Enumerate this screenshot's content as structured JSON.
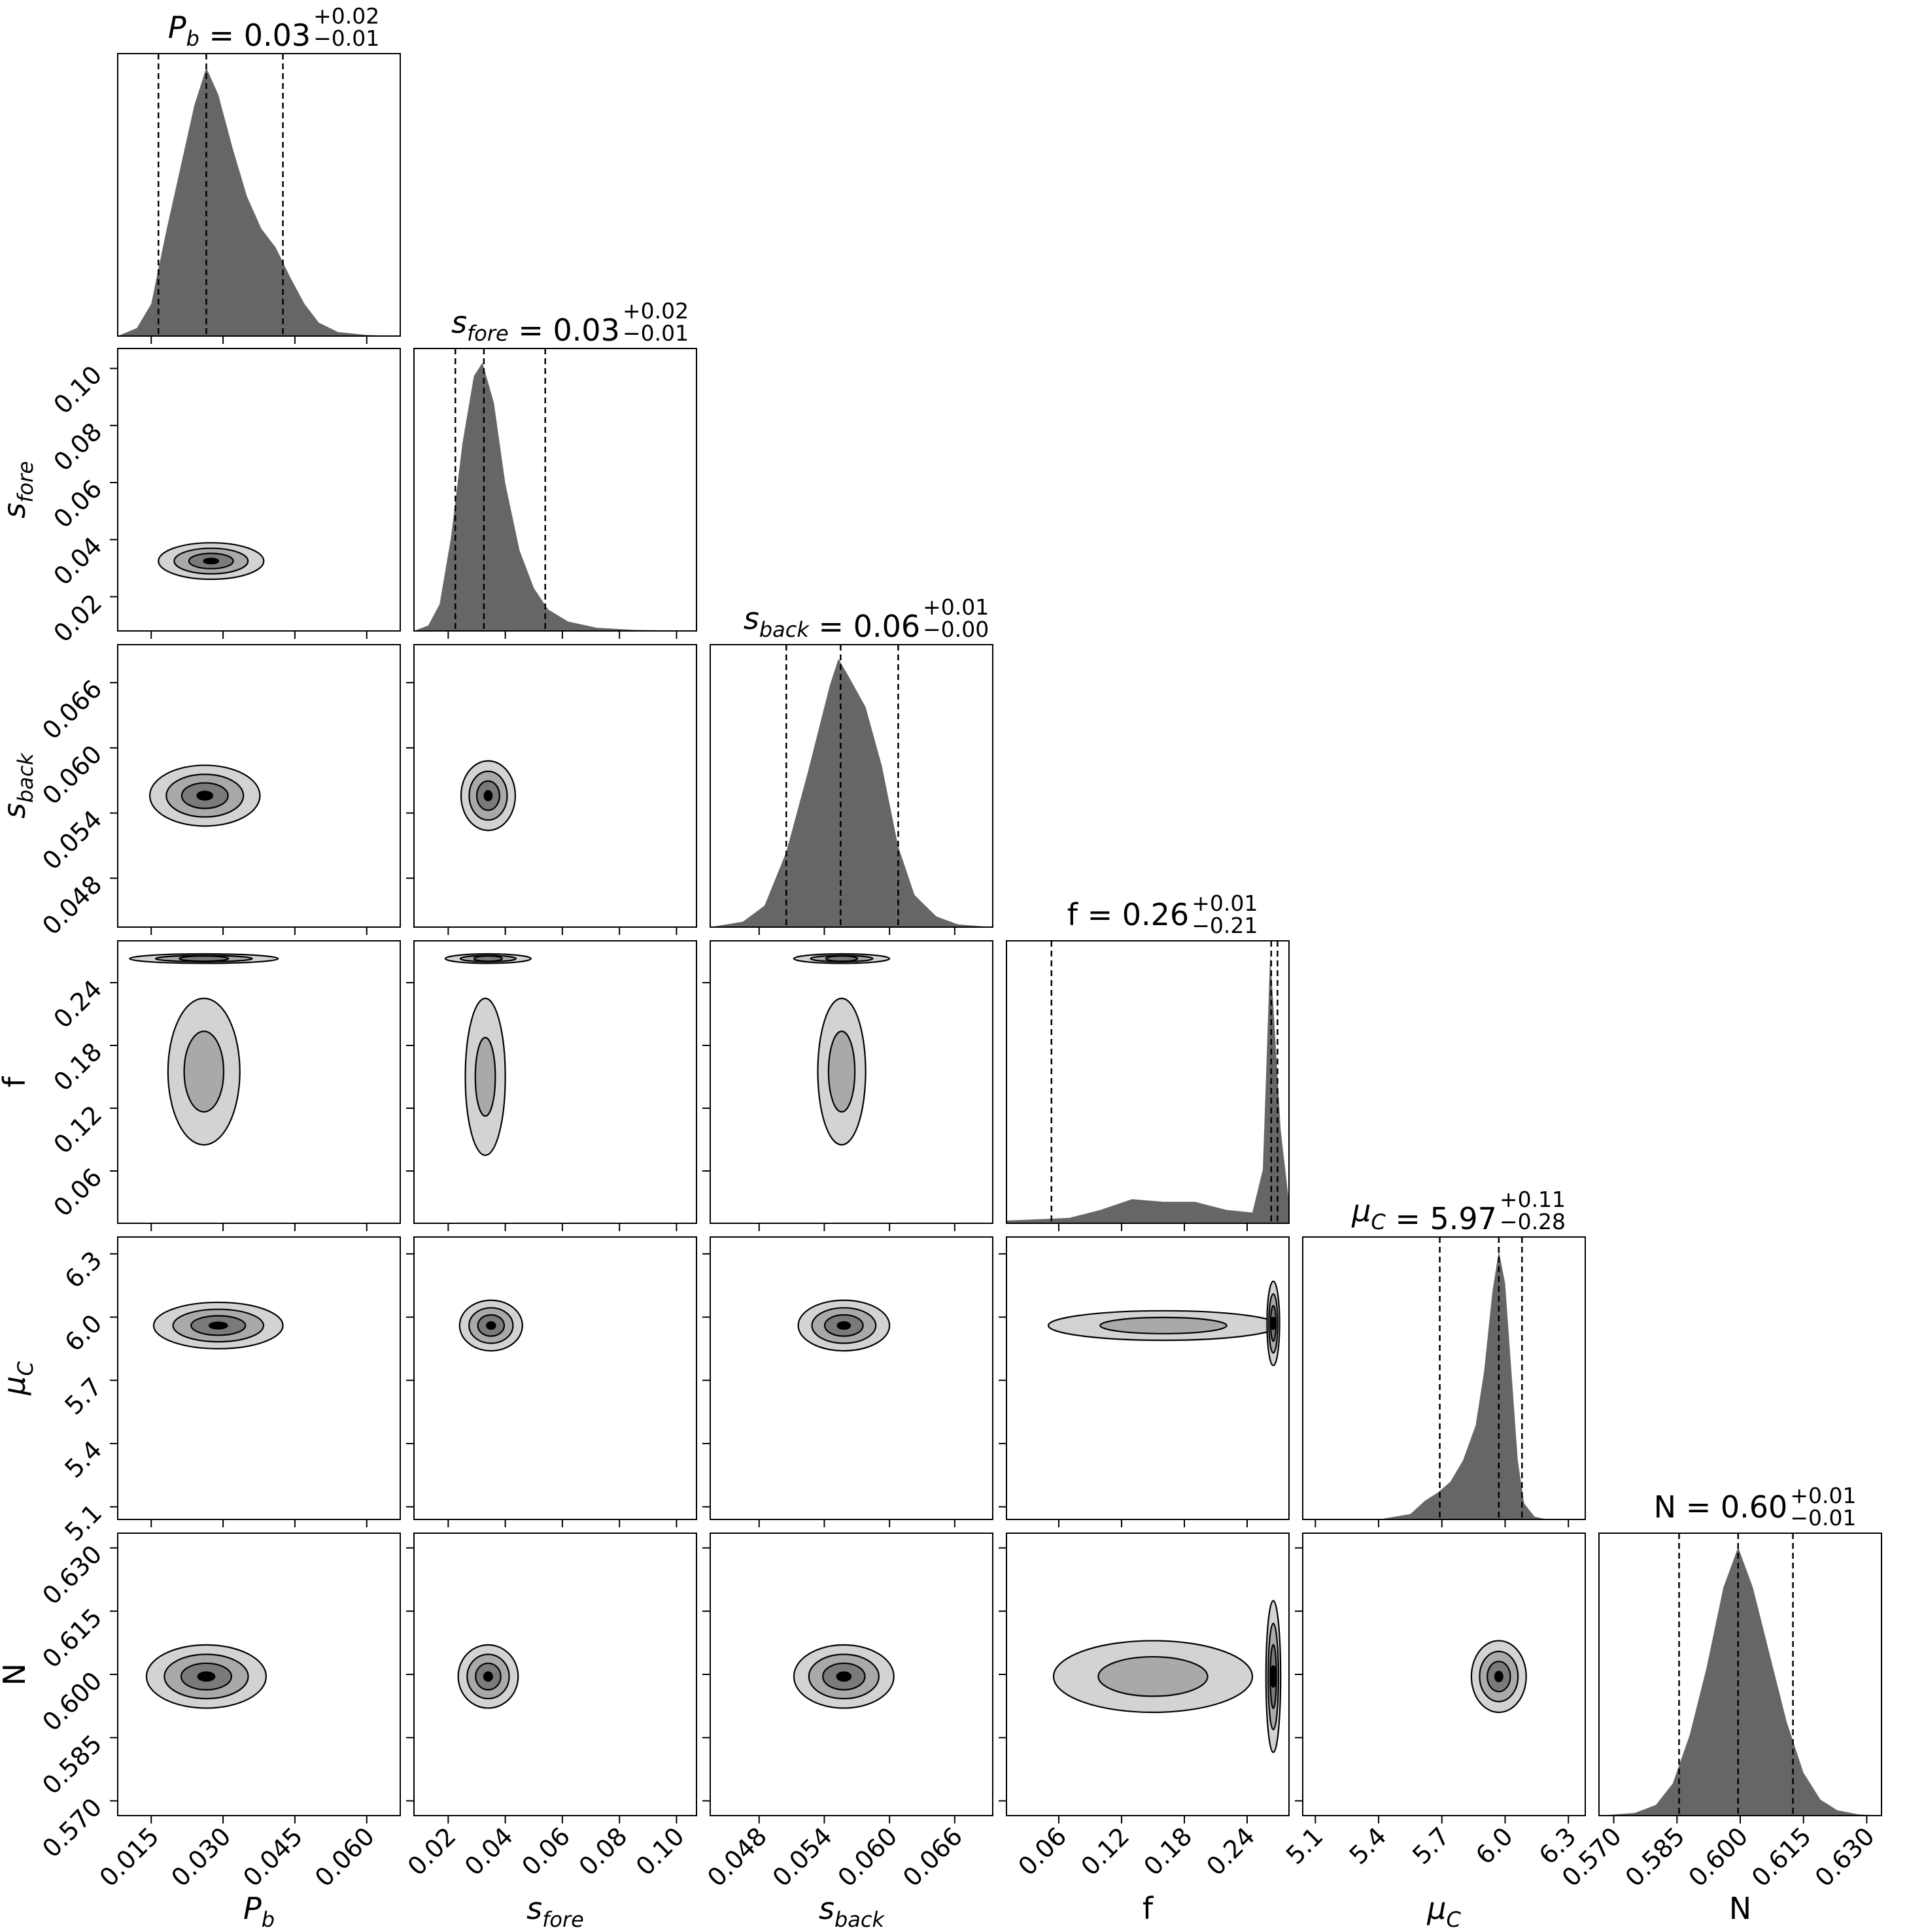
{
  "chart_data": {
    "type": "corner",
    "parameters": [
      {
        "id": "Pb",
        "label_main": "P",
        "label_sub": "b",
        "title_value": "0.03",
        "title_plus": "+0.02",
        "title_minus": "−0.01",
        "range": [
          0.008,
          0.067
        ],
        "ticks": [
          0.015,
          0.03,
          0.045,
          0.06
        ],
        "tick_labels": [
          "0.015",
          "0.030",
          "0.045",
          "0.060"
        ],
        "median": 0.0265,
        "q16": 0.0165,
        "q84": 0.0425,
        "hist": [
          [
            0.008,
            0
          ],
          [
            0.012,
            0.03
          ],
          [
            0.015,
            0.12
          ],
          [
            0.018,
            0.38
          ],
          [
            0.021,
            0.62
          ],
          [
            0.024,
            0.86
          ],
          [
            0.0265,
            1.0
          ],
          [
            0.029,
            0.9
          ],
          [
            0.032,
            0.7
          ],
          [
            0.035,
            0.52
          ],
          [
            0.038,
            0.4
          ],
          [
            0.041,
            0.33
          ],
          [
            0.044,
            0.22
          ],
          [
            0.047,
            0.12
          ],
          [
            0.05,
            0.05
          ],
          [
            0.054,
            0.015
          ],
          [
            0.06,
            0.004
          ],
          [
            0.067,
            0
          ]
        ]
      },
      {
        "id": "sfore",
        "label_main": "s",
        "label_sub": "fore",
        "title_value": "0.03",
        "title_plus": "+0.02",
        "title_minus": "−0.01",
        "range": [
          0.008,
          0.107
        ],
        "ticks": [
          0.02,
          0.04,
          0.06,
          0.08,
          0.1
        ],
        "tick_labels": [
          "0.02",
          "0.04",
          "0.06",
          "0.08",
          "0.10"
        ],
        "median": 0.0325,
        "q16": 0.0225,
        "q84": 0.054,
        "hist": [
          [
            0.008,
            0
          ],
          [
            0.013,
            0.02
          ],
          [
            0.017,
            0.1
          ],
          [
            0.021,
            0.35
          ],
          [
            0.025,
            0.7
          ],
          [
            0.029,
            0.95
          ],
          [
            0.032,
            1.0
          ],
          [
            0.036,
            0.85
          ],
          [
            0.04,
            0.55
          ],
          [
            0.045,
            0.3
          ],
          [
            0.05,
            0.16
          ],
          [
            0.055,
            0.08
          ],
          [
            0.062,
            0.035
          ],
          [
            0.072,
            0.012
          ],
          [
            0.085,
            0.004
          ],
          [
            0.107,
            0
          ]
        ]
      },
      {
        "id": "sback",
        "label_main": "s",
        "label_sub": "back",
        "title_value": "0.06",
        "title_plus": "+0.01",
        "title_minus": "−0.00",
        "range": [
          0.0435,
          0.0695
        ],
        "ticks": [
          0.048,
          0.054,
          0.06,
          0.066
        ],
        "tick_labels": [
          "0.048",
          "0.054",
          "0.060",
          "0.066"
        ],
        "median": 0.0555,
        "q16": 0.0505,
        "q84": 0.0608,
        "hist": [
          [
            0.0435,
            0
          ],
          [
            0.0465,
            0.02
          ],
          [
            0.0485,
            0.08
          ],
          [
            0.0505,
            0.28
          ],
          [
            0.0525,
            0.58
          ],
          [
            0.0545,
            0.9
          ],
          [
            0.0553,
            1.0
          ],
          [
            0.0563,
            0.93
          ],
          [
            0.0578,
            0.82
          ],
          [
            0.0593,
            0.6
          ],
          [
            0.0608,
            0.3
          ],
          [
            0.0623,
            0.12
          ],
          [
            0.0643,
            0.04
          ],
          [
            0.0663,
            0.01
          ],
          [
            0.0695,
            0
          ]
        ]
      },
      {
        "id": "f",
        "label_main": "f",
        "label_sub": "",
        "title_value": "0.26",
        "title_plus": "+0.01",
        "title_minus": "−0.21",
        "range": [
          0.01,
          0.28
        ],
        "ticks": [
          0.06,
          0.12,
          0.18,
          0.24
        ],
        "tick_labels": [
          "0.06",
          "0.12",
          "0.18",
          "0.24"
        ],
        "median": 0.263,
        "q16": 0.053,
        "q84": 0.269,
        "hist": [
          [
            0.01,
            0.01
          ],
          [
            0.04,
            0.015
          ],
          [
            0.07,
            0.02
          ],
          [
            0.1,
            0.05
          ],
          [
            0.13,
            0.09
          ],
          [
            0.16,
            0.08
          ],
          [
            0.19,
            0.08
          ],
          [
            0.22,
            0.05
          ],
          [
            0.245,
            0.04
          ],
          [
            0.255,
            0.2
          ],
          [
            0.262,
            1.0
          ],
          [
            0.266,
            0.75
          ],
          [
            0.272,
            0.35
          ],
          [
            0.28,
            0.08
          ]
        ]
      },
      {
        "id": "muC",
        "label_main": "μ",
        "label_sub": "C",
        "title_value": "5.97",
        "title_plus": "+0.11",
        "title_minus": "−0.28",
        "range": [
          5.04,
          6.38
        ],
        "ticks": [
          5.1,
          5.4,
          5.7,
          6.0,
          6.3
        ],
        "tick_labels": [
          "5.1",
          "5.4",
          "5.7",
          "6.0",
          "6.3"
        ],
        "median": 5.97,
        "q16": 5.69,
        "q84": 6.08,
        "hist": [
          [
            5.4,
            0
          ],
          [
            5.55,
            0.02
          ],
          [
            5.62,
            0.07
          ],
          [
            5.68,
            0.1
          ],
          [
            5.74,
            0.14
          ],
          [
            5.8,
            0.22
          ],
          [
            5.86,
            0.35
          ],
          [
            5.9,
            0.55
          ],
          [
            5.94,
            0.85
          ],
          [
            5.97,
            1.0
          ],
          [
            6.0,
            0.88
          ],
          [
            6.03,
            0.55
          ],
          [
            6.06,
            0.22
          ],
          [
            6.09,
            0.06
          ],
          [
            6.14,
            0.01
          ],
          [
            6.2,
            0
          ]
        ]
      },
      {
        "id": "N",
        "label_main": "N",
        "label_sub": "",
        "title_value": "0.60",
        "title_plus": "+0.01",
        "title_minus": "−0.01",
        "range": [
          0.5665,
          0.6335
        ],
        "ticks": [
          0.57,
          0.585,
          0.6,
          0.615,
          0.63
        ],
        "tick_labels": [
          "0.570",
          "0.585",
          "0.600",
          "0.615",
          "0.630"
        ],
        "median": 0.5995,
        "q16": 0.5855,
        "q84": 0.6125,
        "hist": [
          [
            0.5665,
            0
          ],
          [
            0.575,
            0.01
          ],
          [
            0.58,
            0.04
          ],
          [
            0.584,
            0.12
          ],
          [
            0.588,
            0.3
          ],
          [
            0.592,
            0.55
          ],
          [
            0.596,
            0.85
          ],
          [
            0.5995,
            1.0
          ],
          [
            0.603,
            0.85
          ],
          [
            0.607,
            0.6
          ],
          [
            0.611,
            0.35
          ],
          [
            0.615,
            0.16
          ],
          [
            0.619,
            0.06
          ],
          [
            0.623,
            0.02
          ],
          [
            0.628,
            0.005
          ],
          [
            0.6335,
            0
          ]
        ]
      }
    ],
    "contour_fills": [
      "#d3d3d3",
      "#a9a9a9",
      "#7a7a7a",
      "#000000"
    ],
    "hist_fill": "#666666",
    "blobs": [
      {
        "row": 1,
        "col": 0,
        "components": [
          {
            "cx": 0.0275,
            "cy": 0.0325,
            "sx": 0.011,
            "sy": 0.0064,
            "levels": [
              1.0,
              0.7,
              0.42,
              0.14
            ]
          }
        ]
      },
      {
        "row": 2,
        "col": 0,
        "components": [
          {
            "cx": 0.0262,
            "cy": 0.0556,
            "sx": 0.0115,
            "sy": 0.0028,
            "levels": [
              1.0,
              0.7,
              0.42,
              0.14
            ]
          }
        ]
      },
      {
        "row": 2,
        "col": 1,
        "components": [
          {
            "cx": 0.034,
            "cy": 0.0556,
            "sx": 0.0095,
            "sy": 0.0032,
            "levels": [
              1.0,
              0.7,
              0.42,
              0.14
            ]
          }
        ]
      },
      {
        "row": 3,
        "col": 0,
        "components": [
          {
            "cx": 0.026,
            "cy": 0.263,
            "sx": 0.0155,
            "sy": 0.0045,
            "levels": [
              1.0,
              0.65,
              0.33
            ]
          },
          {
            "cx": 0.026,
            "cy": 0.155,
            "sx": 0.0075,
            "sy": 0.07,
            "levels": [
              1.0,
              0.55
            ]
          }
        ]
      },
      {
        "row": 3,
        "col": 1,
        "components": [
          {
            "cx": 0.034,
            "cy": 0.263,
            "sx": 0.015,
            "sy": 0.0045,
            "levels": [
              1.0,
              0.65,
              0.33
            ]
          },
          {
            "cx": 0.033,
            "cy": 0.15,
            "sx": 0.007,
            "sy": 0.075,
            "levels": [
              1.0,
              0.5
            ]
          }
        ]
      },
      {
        "row": 3,
        "col": 2,
        "components": [
          {
            "cx": 0.0556,
            "cy": 0.263,
            "sx": 0.0044,
            "sy": 0.0045,
            "levels": [
              1.0,
              0.65,
              0.33
            ]
          },
          {
            "cx": 0.0556,
            "cy": 0.155,
            "sx": 0.0022,
            "sy": 0.07,
            "levels": [
              1.0,
              0.55
            ]
          }
        ]
      },
      {
        "row": 4,
        "col": 0,
        "components": [
          {
            "cx": 0.029,
            "cy": 5.96,
            "sx": 0.0135,
            "sy": 0.11,
            "levels": [
              1.0,
              0.7,
              0.42,
              0.14
            ]
          }
        ]
      },
      {
        "row": 4,
        "col": 1,
        "components": [
          {
            "cx": 0.035,
            "cy": 5.96,
            "sx": 0.011,
            "sy": 0.12,
            "levels": [
              1.0,
              0.7,
              0.42,
              0.14
            ]
          }
        ]
      },
      {
        "row": 4,
        "col": 2,
        "components": [
          {
            "cx": 0.0558,
            "cy": 5.96,
            "sx": 0.0042,
            "sy": 0.12,
            "levels": [
              1.0,
              0.7,
              0.42,
              0.14
            ]
          }
        ]
      },
      {
        "row": 4,
        "col": 3,
        "components": [
          {
            "cx": 0.16,
            "cy": 5.96,
            "sx": 0.11,
            "sy": 0.07,
            "levels": [
              1.0,
              0.55
            ]
          },
          {
            "cx": 0.265,
            "cy": 5.97,
            "sx": 0.006,
            "sy": 0.2,
            "levels": [
              1.0,
              0.7,
              0.42,
              0.14
            ]
          }
        ]
      },
      {
        "row": 5,
        "col": 0,
        "components": [
          {
            "cx": 0.0265,
            "cy": 0.5995,
            "sx": 0.0125,
            "sy": 0.0075,
            "levels": [
              1.0,
              0.7,
              0.42,
              0.14
            ]
          }
        ]
      },
      {
        "row": 5,
        "col": 1,
        "components": [
          {
            "cx": 0.034,
            "cy": 0.5995,
            "sx": 0.0105,
            "sy": 0.0075,
            "levels": [
              1.0,
              0.7,
              0.42,
              0.14
            ]
          }
        ]
      },
      {
        "row": 5,
        "col": 2,
        "components": [
          {
            "cx": 0.0558,
            "cy": 0.5995,
            "sx": 0.0046,
            "sy": 0.0075,
            "levels": [
              1.0,
              0.7,
              0.42,
              0.14
            ]
          }
        ]
      },
      {
        "row": 5,
        "col": 3,
        "components": [
          {
            "cx": 0.15,
            "cy": 0.5995,
            "sx": 0.095,
            "sy": 0.0085,
            "levels": [
              1.0,
              0.55
            ]
          },
          {
            "cx": 0.265,
            "cy": 0.5995,
            "sx": 0.007,
            "sy": 0.018,
            "levels": [
              1.0,
              0.7,
              0.42,
              0.14
            ]
          }
        ]
      },
      {
        "row": 5,
        "col": 4,
        "components": [
          {
            "cx": 5.97,
            "cy": 0.5995,
            "sx": 0.13,
            "sy": 0.0085,
            "levels": [
              1.0,
              0.7,
              0.42,
              0.14
            ]
          }
        ]
      }
    ]
  }
}
